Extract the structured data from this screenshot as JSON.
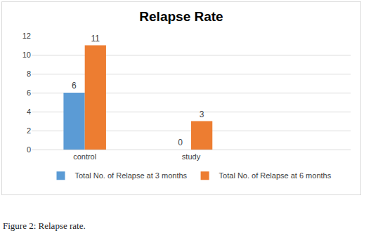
{
  "chart_data": {
    "type": "bar",
    "title": "Relapse Rate",
    "caption": "Figure 2: Relapse rate.",
    "categories": [
      "control",
      "study",
      null
    ],
    "series": [
      {
        "name": "Total No. of Relapse at 3 months",
        "color": "#5b9bd5",
        "values": [
          6,
          0,
          null
        ]
      },
      {
        "name": "Total No. of Relapse at 6 months",
        "color": "#ed7d31",
        "values": [
          11,
          3,
          null
        ]
      }
    ],
    "ylim": [
      0,
      12
    ],
    "yticks": [
      0,
      2,
      4,
      6,
      8,
      10,
      12
    ],
    "grid": true,
    "legend": "bottom",
    "data_labels": true
  }
}
